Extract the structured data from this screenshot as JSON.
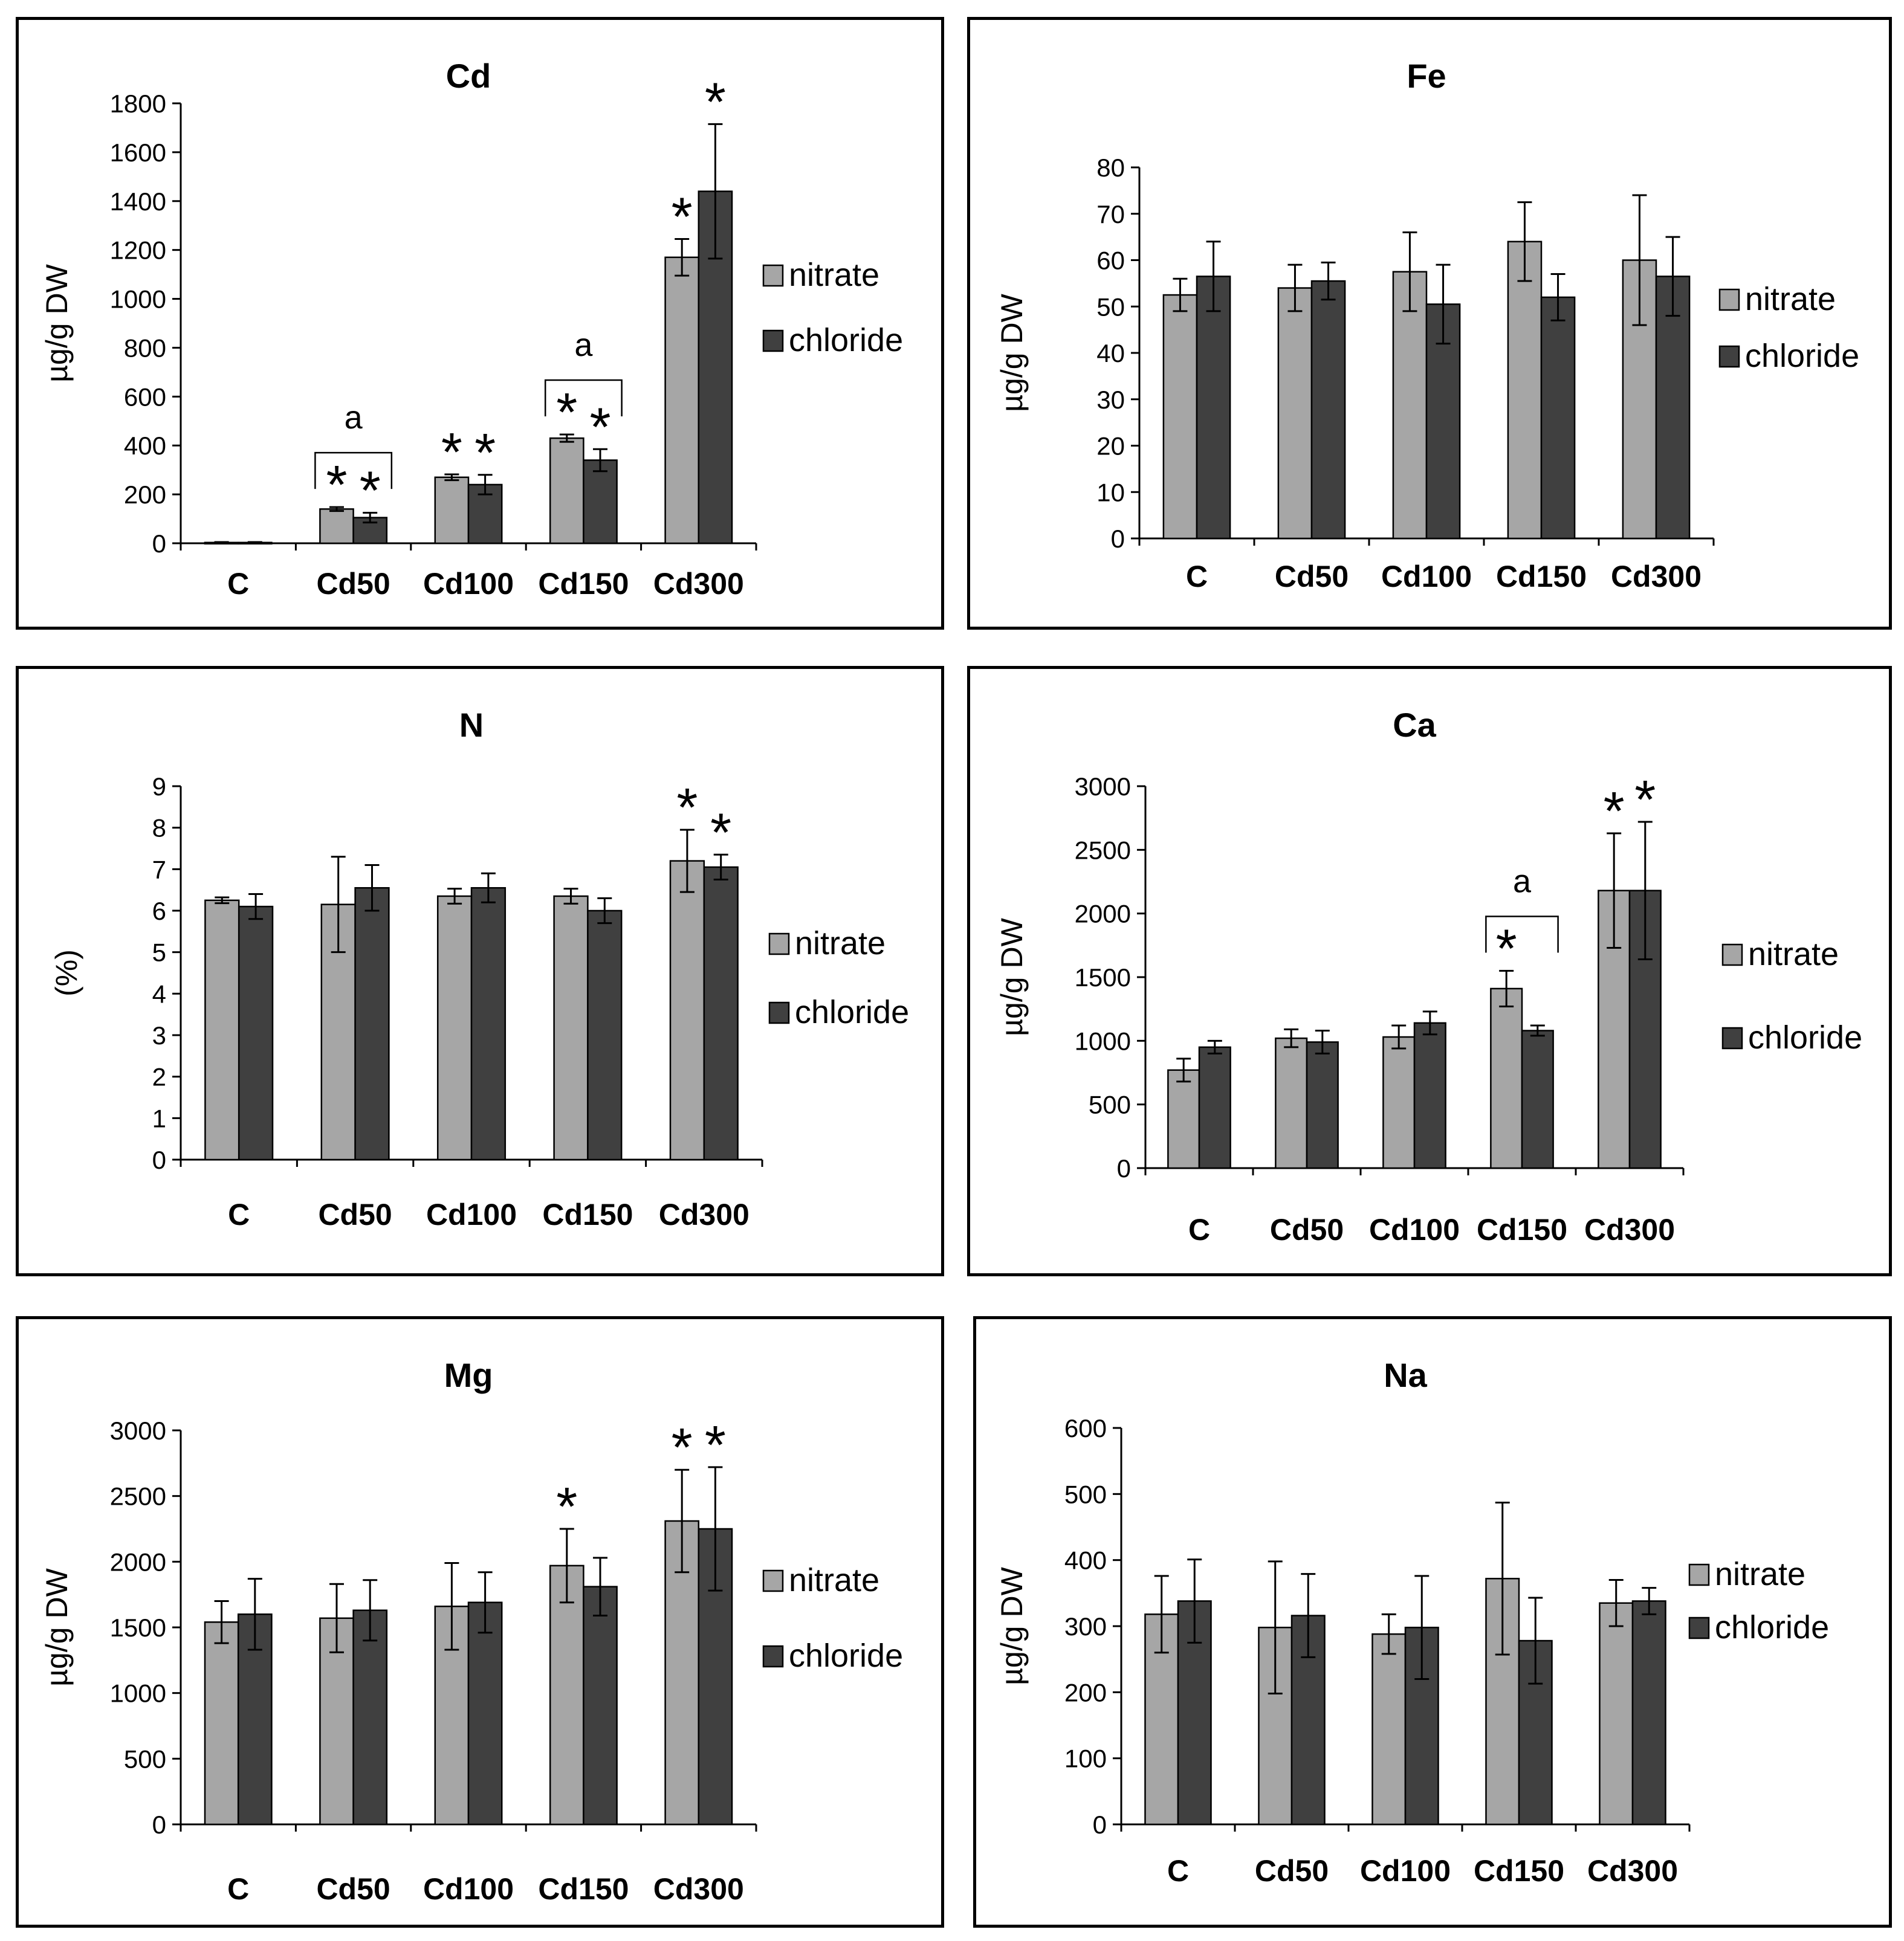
{
  "colors": {
    "nitrate": "#a6a6a6",
    "chloride": "#404040",
    "axis": "#000000",
    "frame": "#000000"
  },
  "series_names": [
    "nitrate",
    "chloride"
  ],
  "chart_data": [
    {
      "type": "bar",
      "title": "Cd",
      "ylabel": "µg/g DW",
      "xlabel": "",
      "categories": [
        "C",
        "Cd50",
        "Cd100",
        "Cd150",
        "Cd300"
      ],
      "ylim": [
        0,
        1800
      ],
      "yticks": [
        0,
        200,
        400,
        600,
        800,
        1000,
        1200,
        1400,
        1600,
        1800
      ],
      "series": [
        {
          "name": "nitrate",
          "values": [
            3,
            140,
            270,
            430,
            1170
          ],
          "errors": [
            2,
            8,
            12,
            15,
            75
          ]
        },
        {
          "name": "chloride",
          "values": [
            3,
            105,
            240,
            340,
            1440
          ],
          "errors": [
            2,
            20,
            40,
            45,
            275
          ]
        }
      ],
      "significance": [
        {
          "category": "Cd50",
          "series": "nitrate",
          "text": "*"
        },
        {
          "category": "Cd50",
          "series": "chloride",
          "text": "*"
        },
        {
          "category": "Cd100",
          "series": "nitrate",
          "text": "*"
        },
        {
          "category": "Cd100",
          "series": "chloride",
          "text": "*"
        },
        {
          "category": "Cd150",
          "series": "nitrate",
          "text": "*"
        },
        {
          "category": "Cd150",
          "series": "chloride",
          "text": "*"
        },
        {
          "category": "Cd300",
          "series": "nitrate",
          "text": "*"
        },
        {
          "category": "Cd300",
          "series": "chloride",
          "text": "*"
        }
      ],
      "annotations": [
        {
          "category": "Cd50",
          "text": "a"
        },
        {
          "category": "Cd150",
          "text": "a"
        }
      ]
    },
    {
      "type": "bar",
      "title": "Fe",
      "ylabel": "µg/g DW",
      "xlabel": "",
      "categories": [
        "C",
        "Cd50",
        "Cd100",
        "Cd150",
        "Cd300"
      ],
      "ylim": [
        0,
        80
      ],
      "yticks": [
        0,
        10,
        20,
        30,
        40,
        50,
        60,
        70,
        80
      ],
      "series": [
        {
          "name": "nitrate",
          "values": [
            52.5,
            54,
            57.5,
            64,
            60
          ],
          "errors": [
            3.5,
            5,
            8.5,
            8.5,
            14
          ]
        },
        {
          "name": "chloride",
          "values": [
            56.5,
            55.5,
            50.5,
            52,
            56.5
          ],
          "errors": [
            7.5,
            4,
            8.5,
            5,
            8.5
          ]
        }
      ],
      "significance": [],
      "annotations": []
    },
    {
      "type": "bar",
      "title": "N",
      "ylabel": "(%)",
      "xlabel": "",
      "categories": [
        "C",
        "Cd50",
        "Cd100",
        "Cd150",
        "Cd300"
      ],
      "ylim": [
        0,
        9
      ],
      "yticks": [
        0,
        1,
        2,
        3,
        4,
        5,
        6,
        7,
        8,
        9
      ],
      "series": [
        {
          "name": "nitrate",
          "values": [
            6.25,
            6.15,
            6.35,
            6.35,
            7.2
          ],
          "errors": [
            0.07,
            1.15,
            0.18,
            0.18,
            0.75
          ]
        },
        {
          "name": "chloride",
          "values": [
            6.1,
            6.55,
            6.55,
            6.0,
            7.05
          ],
          "errors": [
            0.3,
            0.55,
            0.35,
            0.3,
            0.3
          ]
        }
      ],
      "significance": [
        {
          "category": "Cd300",
          "series": "nitrate",
          "text": "*"
        },
        {
          "category": "Cd300",
          "series": "chloride",
          "text": "*"
        }
      ],
      "annotations": []
    },
    {
      "type": "bar",
      "title": "Ca",
      "ylabel": "µg/g DW",
      "xlabel": "",
      "categories": [
        "C",
        "Cd50",
        "Cd100",
        "Cd150",
        "Cd300"
      ],
      "ylim": [
        0,
        3000
      ],
      "yticks": [
        0,
        500,
        1000,
        1500,
        2000,
        2500,
        3000
      ],
      "series": [
        {
          "name": "nitrate",
          "values": [
            770,
            1020,
            1030,
            1410,
            2180
          ],
          "errors": [
            90,
            70,
            90,
            140,
            450
          ]
        },
        {
          "name": "chloride",
          "values": [
            950,
            990,
            1140,
            1080,
            2180
          ],
          "errors": [
            50,
            90,
            90,
            40,
            540
          ]
        }
      ],
      "significance": [
        {
          "category": "Cd150",
          "series": "nitrate",
          "text": "*"
        },
        {
          "category": "Cd300",
          "series": "nitrate",
          "text": "*"
        },
        {
          "category": "Cd300",
          "series": "chloride",
          "text": "*"
        }
      ],
      "annotations": [
        {
          "category": "Cd150",
          "text": "a"
        }
      ]
    },
    {
      "type": "bar",
      "title": "Mg",
      "ylabel": "µg/g DW",
      "xlabel": "",
      "categories": [
        "C",
        "Cd50",
        "Cd100",
        "Cd150",
        "Cd300"
      ],
      "ylim": [
        0,
        3000
      ],
      "yticks": [
        0,
        500,
        1000,
        1500,
        2000,
        2500,
        3000
      ],
      "series": [
        {
          "name": "nitrate",
          "values": [
            1540,
            1570,
            1660,
            1970,
            2310
          ],
          "errors": [
            160,
            260,
            330,
            280,
            390
          ]
        },
        {
          "name": "chloride",
          "values": [
            1600,
            1630,
            1690,
            1810,
            2250
          ],
          "errors": [
            270,
            230,
            230,
            220,
            470
          ]
        }
      ],
      "significance": [
        {
          "category": "Cd150",
          "series": "nitrate",
          "text": "*"
        },
        {
          "category": "Cd300",
          "series": "nitrate",
          "text": "*"
        },
        {
          "category": "Cd300",
          "series": "chloride",
          "text": "*"
        }
      ],
      "annotations": []
    },
    {
      "type": "bar",
      "title": "Na",
      "ylabel": "µg/g DW",
      "xlabel": "",
      "categories": [
        "C",
        "Cd50",
        "Cd100",
        "Cd150",
        "Cd300"
      ],
      "ylim": [
        0,
        600
      ],
      "yticks": [
        0,
        100,
        200,
        300,
        400,
        500,
        600
      ],
      "series": [
        {
          "name": "nitrate",
          "values": [
            318,
            298,
            288,
            372,
            335
          ],
          "errors": [
            58,
            100,
            30,
            115,
            35
          ]
        },
        {
          "name": "chloride",
          "values": [
            338,
            316,
            298,
            278,
            338
          ],
          "errors": [
            63,
            63,
            78,
            65,
            20
          ]
        }
      ],
      "significance": [],
      "annotations": []
    }
  ]
}
